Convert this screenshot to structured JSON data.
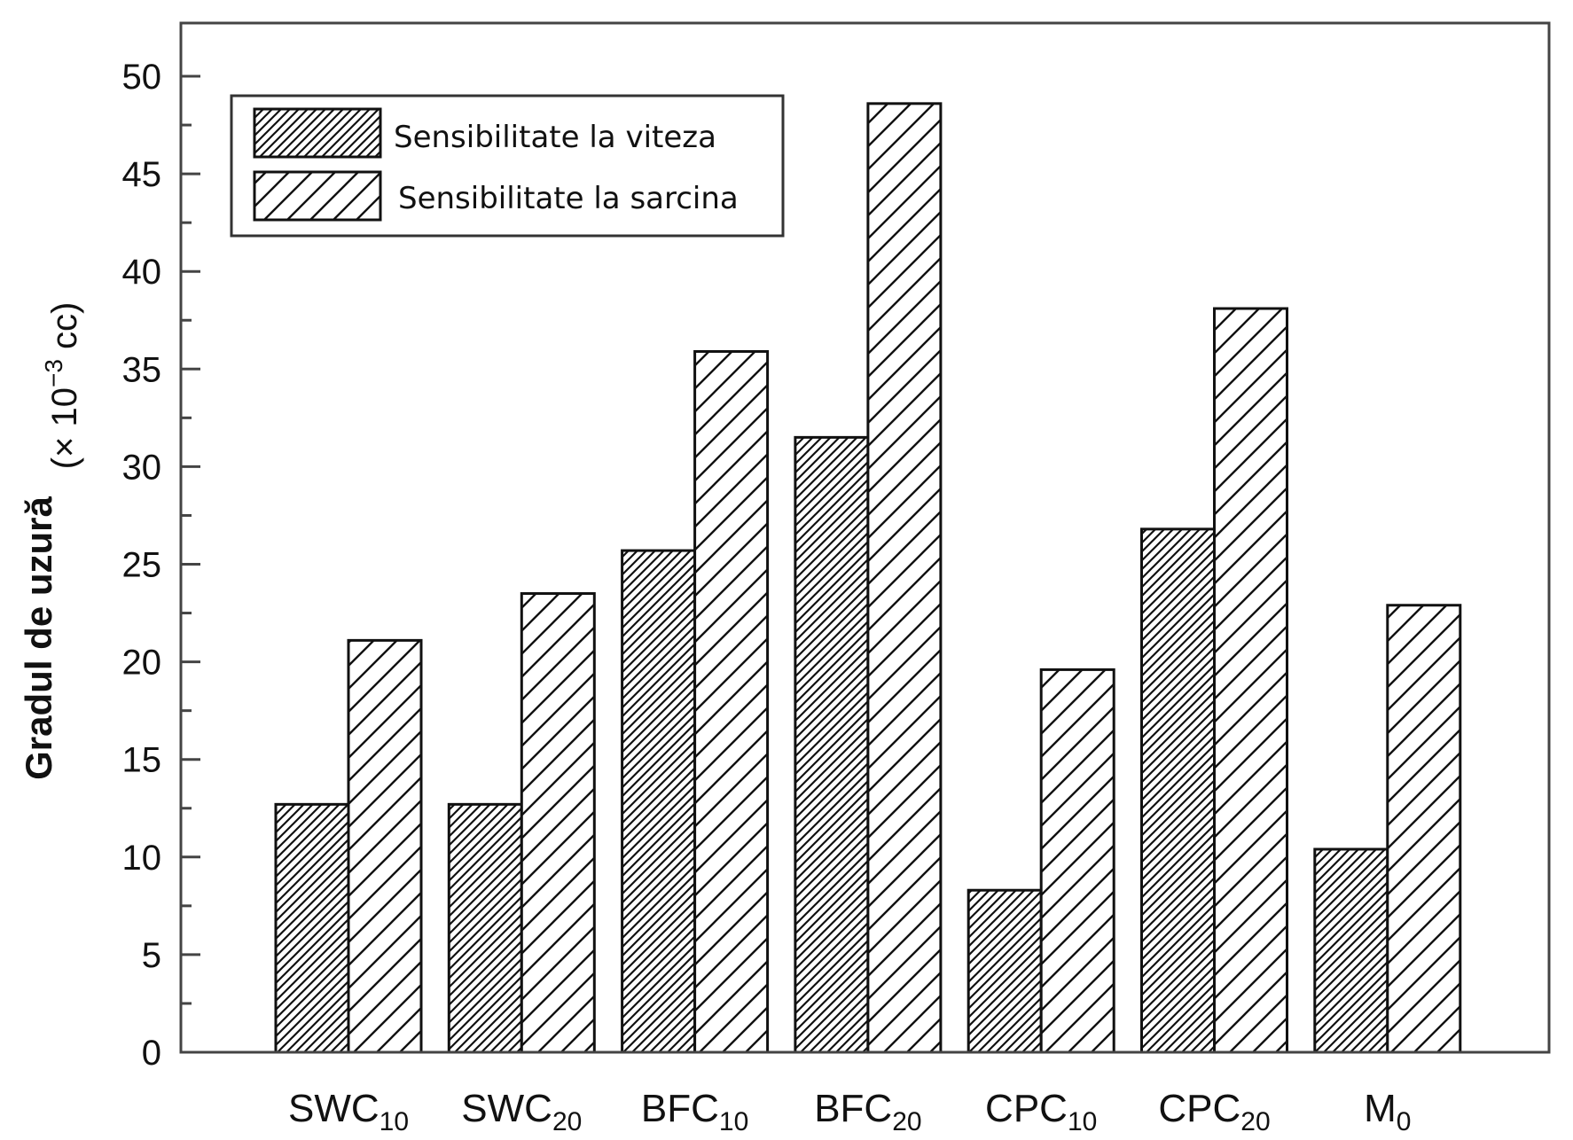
{
  "chart_data": {
    "type": "bar",
    "categories": [
      {
        "base": "SWC",
        "sub": "10"
      },
      {
        "base": "SWC",
        "sub": "20"
      },
      {
        "base": "BFC",
        "sub": "10"
      },
      {
        "base": "BFC",
        "sub": "20"
      },
      {
        "base": "CPC",
        "sub": "10"
      },
      {
        "base": "CPC",
        "sub": "20"
      },
      {
        "base": "M",
        "sub": "0"
      }
    ],
    "series": [
      {
        "name": "Sensibilitate la viteza",
        "pattern": "dense-hatch",
        "values": [
          12.7,
          12.7,
          25.7,
          31.5,
          8.3,
          26.8,
          10.4
        ]
      },
      {
        "name": "Sensibilitate la sarcina",
        "pattern": "wide-hatch",
        "values": [
          21.1,
          23.5,
          35.9,
          48.6,
          19.6,
          38.1,
          22.9
        ]
      }
    ],
    "ylabel": "Gradul de uzură",
    "yunit": {
      "prefix": "(× 10",
      "exp": "−3",
      "suffix": " cc)"
    },
    "ylim": [
      0,
      52
    ],
    "yticks": [
      0,
      5,
      10,
      15,
      20,
      25,
      30,
      35,
      40,
      45,
      50
    ],
    "grid": false,
    "legend_position": "top-left"
  }
}
